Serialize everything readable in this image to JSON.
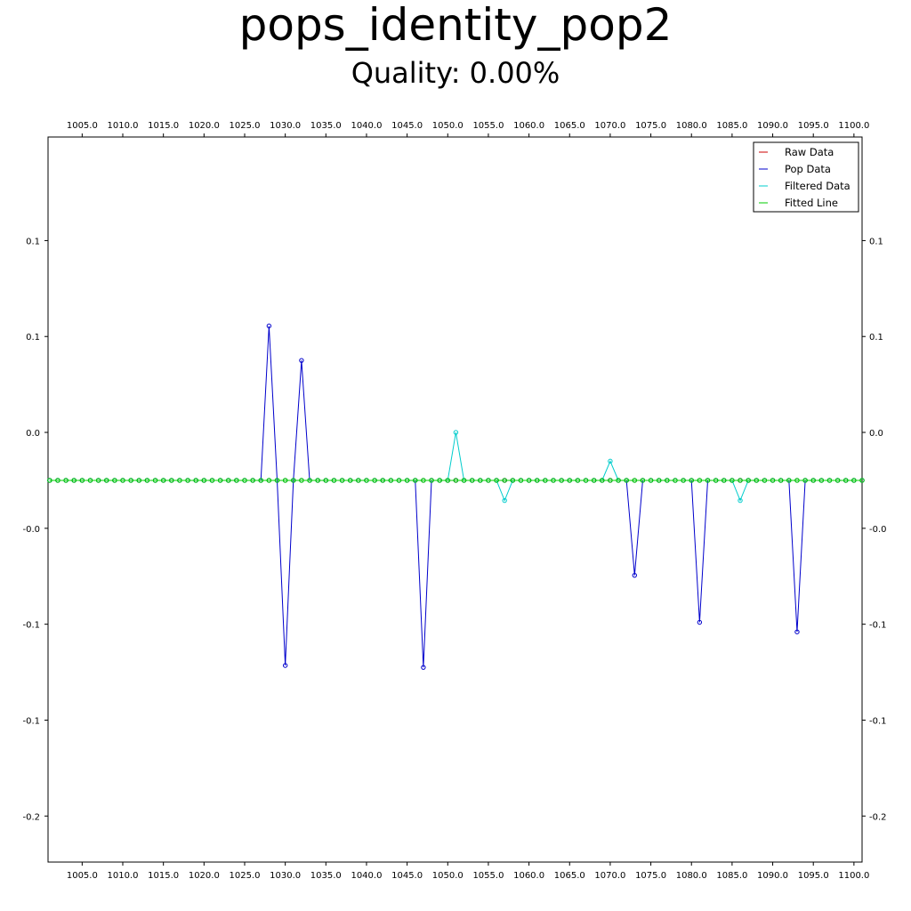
{
  "title": "pops_identity_pop2",
  "subtitle": "Quality: 0.00%",
  "chart_data": {
    "type": "line",
    "title": "pops_identity_pop2",
    "subtitle": "Quality: 0.00%",
    "xlabel": "",
    "ylabel": "",
    "xlim": [
      1000.8,
      1101.0
    ],
    "ylim": [
      -0.199,
      0.179
    ],
    "grid": false,
    "legend_position": "top-right",
    "x_ticks": [
      1005,
      1010,
      1015,
      1020,
      1025,
      1030,
      1035,
      1040,
      1045,
      1050,
      1055,
      1060,
      1065,
      1070,
      1075,
      1080,
      1085,
      1090,
      1095,
      1100
    ],
    "x_tick_labels": [
      "1005.0",
      "1010.0",
      "1015.0",
      "1020.0",
      "1025.0",
      "1030.0",
      "1035.0",
      "1040.0",
      "1045.0",
      "1050.0",
      "1055.0",
      "1060.0",
      "1065.0",
      "1070.0",
      "1075.0",
      "1080.0",
      "1085.0",
      "1090.0",
      "1095.0",
      "1100.0"
    ],
    "y_ticks": [
      0.125,
      0.075,
      0.025,
      -0.025,
      -0.075,
      -0.125,
      -0.175
    ],
    "y_tick_labels": [
      "0.1",
      "0.1",
      "0.0",
      "-0.0",
      "-0.1",
      "-0.1",
      "-0.2"
    ],
    "x": {
      "start": 1001,
      "end": 1101,
      "step": 1
    },
    "series": [
      {
        "name": "Raw Data",
        "color": "#cc0000",
        "values": "zero"
      },
      {
        "name": "Pop Data",
        "color": "#0000cc",
        "nonzero": [
          [
            1028,
            0.0805
          ],
          [
            1030,
            -0.0965
          ],
          [
            1032,
            0.0625
          ],
          [
            1047,
            -0.0975
          ],
          [
            1073,
            -0.0495
          ],
          [
            1081,
            -0.074
          ],
          [
            1093,
            -0.079
          ]
        ]
      },
      {
        "name": "Filtered Data",
        "color": "#00cccc",
        "nonzero": [
          [
            1051,
            0.025
          ],
          [
            1057,
            -0.0105
          ],
          [
            1070,
            0.01
          ],
          [
            1086,
            -0.0105
          ]
        ]
      },
      {
        "name": "Fitted Line",
        "color": "#00cc00",
        "values": "zero"
      }
    ]
  }
}
